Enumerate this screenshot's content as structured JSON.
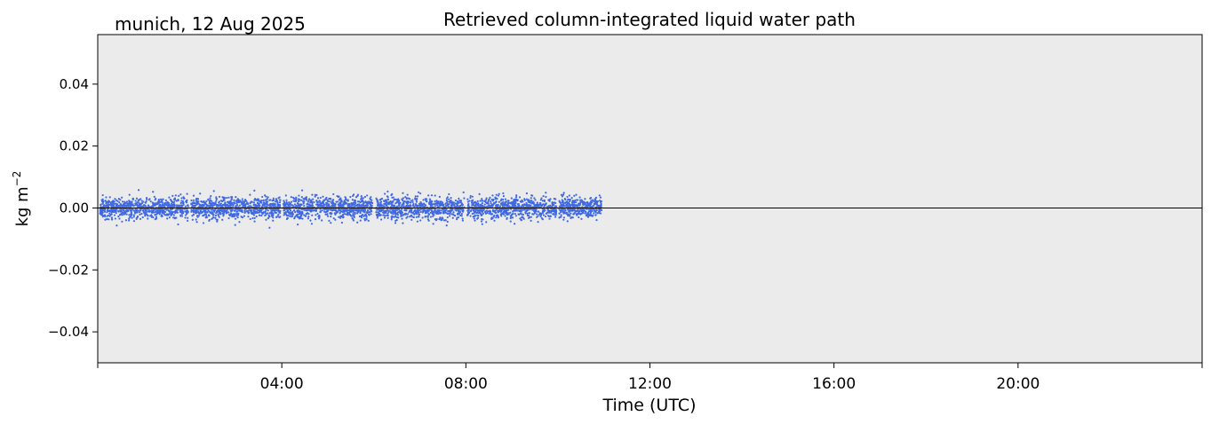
{
  "chart_data": {
    "type": "scatter",
    "title": "Retrieved column-integrated liquid water path",
    "subtitle": "munich, 12 Aug 2025",
    "xlabel": "Time (UTC)",
    "ylabel_base": "kg m",
    "ylabel_exp": "−2",
    "xlim_hours": [
      0,
      24
    ],
    "ylim": [
      -0.05,
      0.056
    ],
    "x_ticks": [
      {
        "hour": 4,
        "label": "04:00"
      },
      {
        "hour": 8,
        "label": "08:00"
      },
      {
        "hour": 12,
        "label": "12:00"
      },
      {
        "hour": 16,
        "label": "16:00"
      },
      {
        "hour": 20,
        "label": "20:00"
      }
    ],
    "y_ticks": [
      {
        "value": 0.04,
        "label": "0.04"
      },
      {
        "value": 0.02,
        "label": "0.02"
      },
      {
        "value": 0.0,
        "label": "0.00"
      },
      {
        "value": -0.02,
        "label": "−0.02"
      },
      {
        "value": -0.04,
        "label": "−0.04"
      }
    ],
    "zero_line": 0,
    "grid": false,
    "series": [
      {
        "type": "scatter",
        "hour_range": [
          0.05,
          10.95
        ],
        "gaps_hours": [
          2.0,
          4.0,
          6.0,
          8.0,
          10.0
        ],
        "mean": 0.0,
        "spread": 0.0017,
        "max_abs": 0.007
      },
      {
        "type": "line",
        "hour_range": [
          0.3,
          10.75
        ],
        "mean": 0.0
      }
    ],
    "colors": {
      "plot_background": "#ebebeb",
      "scatter": "#4169e1",
      "line": "#e8a33a",
      "zero_line": "#000000"
    }
  }
}
